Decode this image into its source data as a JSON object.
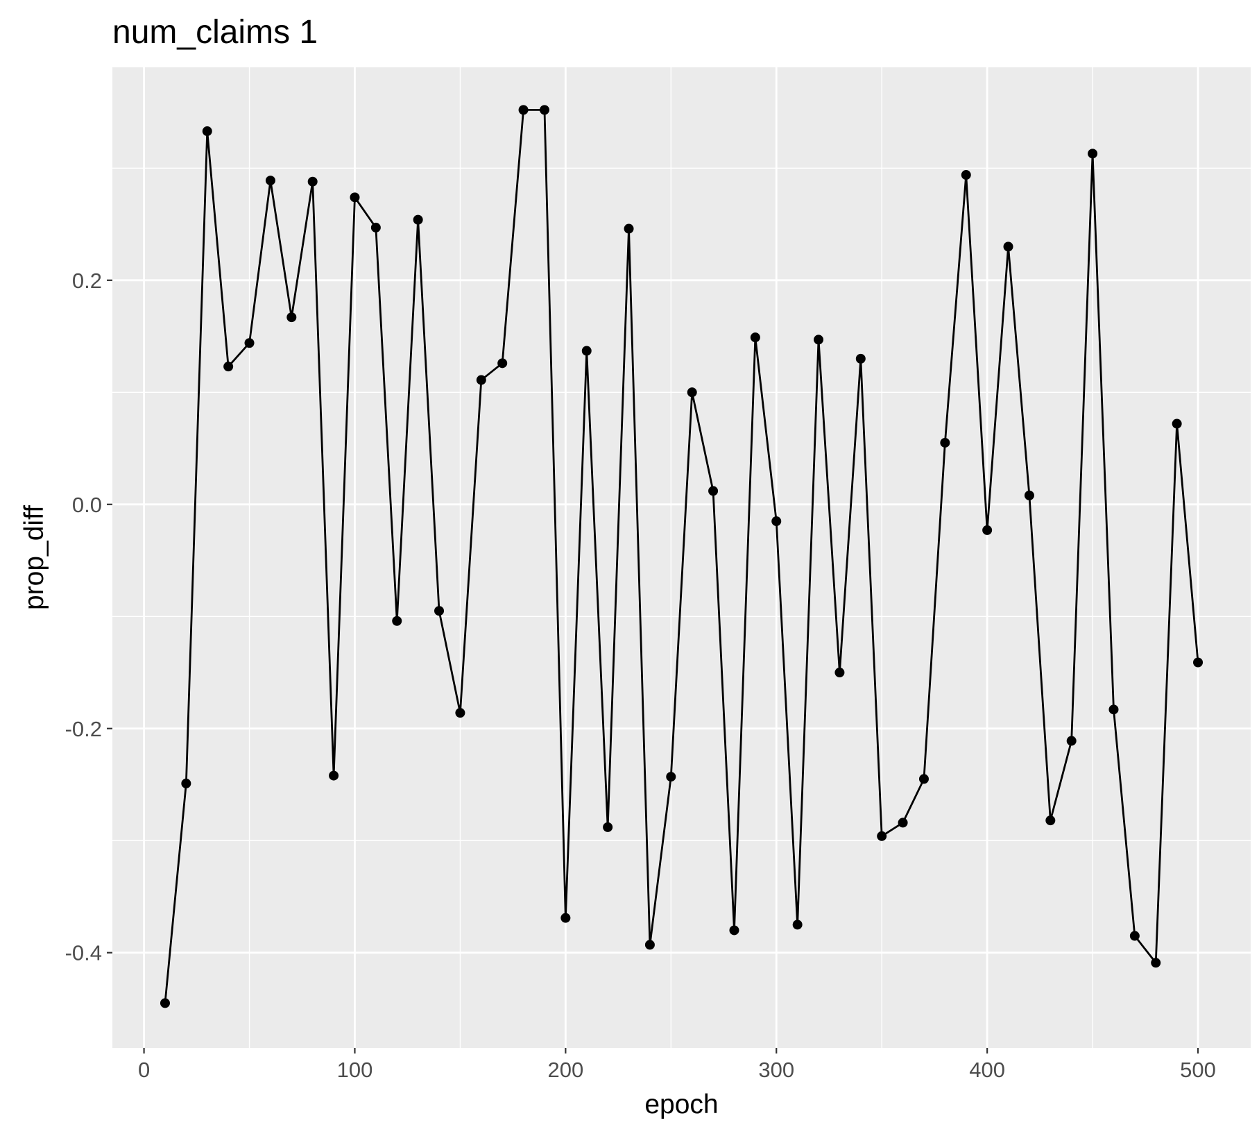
{
  "chart_data": {
    "type": "line",
    "title": "num_claims 1",
    "xlabel": "epoch",
    "ylabel": "prop_diff",
    "xlim": [
      -15,
      525
    ],
    "ylim": [
      -0.485,
      0.39
    ],
    "x_ticks": [
      0,
      100,
      200,
      300,
      400,
      500
    ],
    "x_tick_labels": [
      "0",
      "100",
      "200",
      "300",
      "400",
      "500"
    ],
    "y_ticks": [
      -0.4,
      -0.2,
      0.0,
      0.2
    ],
    "y_tick_labels": [
      "-0.4",
      "-0.2",
      "0.0",
      "0.2"
    ],
    "grid": true,
    "markers": true,
    "colors": {
      "panel": "#ebebeb",
      "grid": "#ffffff",
      "line": "#000000",
      "tick_text": "#4d4d4d"
    },
    "series": [
      {
        "x": [
          10,
          20,
          30,
          40,
          50,
          60,
          70,
          80,
          90,
          100,
          110,
          120,
          130,
          140,
          150,
          160,
          170,
          180,
          190,
          200,
          210,
          220,
          230,
          240,
          250,
          260,
          270,
          280,
          290,
          300,
          310,
          320,
          330,
          340,
          350,
          360,
          370,
          380,
          390,
          400,
          410,
          420,
          430,
          440,
          450,
          460,
          470,
          480,
          490,
          500
        ],
        "y": [
          -0.445,
          -0.249,
          0.333,
          0.123,
          0.144,
          0.289,
          0.167,
          0.288,
          -0.242,
          0.274,
          0.247,
          -0.104,
          0.254,
          -0.095,
          -0.186,
          0.111,
          0.126,
          0.352,
          0.352,
          -0.369,
          0.137,
          -0.288,
          0.246,
          -0.393,
          -0.243,
          0.1,
          0.012,
          -0.38,
          0.149,
          -0.015,
          -0.375,
          0.147,
          -0.15,
          0.13,
          -0.296,
          -0.284,
          -0.245,
          0.055,
          0.294,
          -0.023,
          0.23,
          0.008,
          -0.282,
          -0.211,
          0.313,
          -0.183,
          -0.385,
          -0.409,
          0.072,
          -0.141
        ]
      }
    ]
  }
}
